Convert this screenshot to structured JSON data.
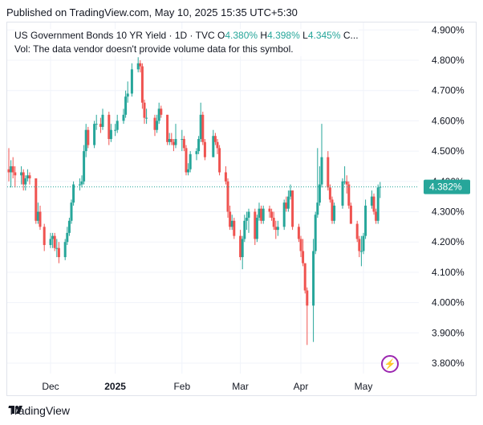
{
  "published": "Published on TradingView.com, May 10, 2025 15:35 UTC+5:30",
  "legend": {
    "title": "US Government Bonds 10 YR Yield · 1D · TVC",
    "o_label": "O",
    "o_val": "4.380%",
    "h_label": "H",
    "h_val": "4.398%",
    "l_label": "L",
    "l_val": "4.345%",
    "c_trunc": "C...",
    "vol": "Vol: The data vendor doesn't provide volume data for this symbol."
  },
  "footer": {
    "brand": "TradingView"
  },
  "icons": {
    "logo": "tradingview-logo-icon",
    "alert": "lightning-bolt-icon"
  },
  "colors": {
    "up": "#26a69a",
    "down": "#ef5350",
    "alert": "#9c27b0"
  },
  "chart_data": {
    "type": "candlestick",
    "y_unit": "%",
    "ylim": [
      3.75,
      4.92
    ],
    "y_ticks": [
      "3.800%",
      "3.900%",
      "4.000%",
      "4.100%",
      "4.200%",
      "4.300%",
      "4.400%",
      "4.500%",
      "4.600%",
      "4.700%",
      "4.800%",
      "4.900%"
    ],
    "x_ticks": [
      {
        "label": "Dec",
        "date": "2024-12-02",
        "bold": false
      },
      {
        "label": "2025",
        "date": "2025-01-02",
        "bold": true
      },
      {
        "label": "Feb",
        "date": "2025-02-03",
        "bold": false
      },
      {
        "label": "Mar",
        "date": "2025-03-03",
        "bold": false
      },
      {
        "label": "Apr",
        "date": "2025-04-01",
        "bold": false
      },
      {
        "label": "May",
        "date": "2025-05-01",
        "bold": false
      }
    ],
    "last_price": "4.382%",
    "last_value": 4.382,
    "grid": true,
    "candles": [
      {
        "d": "2024-11-12",
        "o": 4.44,
        "h": 4.51,
        "l": 4.4,
        "c": 4.43
      },
      {
        "d": "2024-11-13",
        "o": 4.43,
        "h": 4.47,
        "l": 4.38,
        "c": 4.45
      },
      {
        "d": "2024-11-14",
        "o": 4.45,
        "h": 4.48,
        "l": 4.41,
        "c": 4.43
      },
      {
        "d": "2024-11-15",
        "o": 4.43,
        "h": 4.45,
        "l": 4.38,
        "c": 4.42
      },
      {
        "d": "2024-11-18",
        "o": 4.42,
        "h": 4.45,
        "l": 4.39,
        "c": 4.43
      },
      {
        "d": "2024-11-19",
        "o": 4.43,
        "h": 4.44,
        "l": 4.37,
        "c": 4.39
      },
      {
        "d": "2024-11-20",
        "o": 4.39,
        "h": 4.42,
        "l": 4.37,
        "c": 4.41
      },
      {
        "d": "2024-11-21",
        "o": 4.41,
        "h": 4.44,
        "l": 4.4,
        "c": 4.42
      },
      {
        "d": "2024-11-22",
        "o": 4.42,
        "h": 4.43,
        "l": 4.39,
        "c": 4.41
      },
      {
        "d": "2024-11-25",
        "o": 4.41,
        "h": 4.41,
        "l": 4.26,
        "c": 4.27
      },
      {
        "d": "2024-11-26",
        "o": 4.27,
        "h": 4.33,
        "l": 4.26,
        "c": 4.3
      },
      {
        "d": "2024-11-27",
        "o": 4.3,
        "h": 4.32,
        "l": 4.24,
        "c": 4.25
      },
      {
        "d": "2024-11-29",
        "o": 4.25,
        "h": 4.26,
        "l": 4.17,
        "c": 4.19
      },
      {
        "d": "2024-12-02",
        "o": 4.19,
        "h": 4.23,
        "l": 4.18,
        "c": 4.21
      },
      {
        "d": "2024-12-03",
        "o": 4.21,
        "h": 4.23,
        "l": 4.18,
        "c": 4.22
      },
      {
        "d": "2024-12-04",
        "o": 4.22,
        "h": 4.23,
        "l": 4.17,
        "c": 4.18
      },
      {
        "d": "2024-12-05",
        "o": 4.18,
        "h": 4.21,
        "l": 4.15,
        "c": 4.18
      },
      {
        "d": "2024-12-06",
        "o": 4.18,
        "h": 4.2,
        "l": 4.13,
        "c": 4.15
      },
      {
        "d": "2024-12-09",
        "o": 4.15,
        "h": 4.21,
        "l": 4.14,
        "c": 4.2
      },
      {
        "d": "2024-12-10",
        "o": 4.2,
        "h": 4.25,
        "l": 4.19,
        "c": 4.23
      },
      {
        "d": "2024-12-11",
        "o": 4.23,
        "h": 4.28,
        "l": 4.22,
        "c": 4.27
      },
      {
        "d": "2024-12-12",
        "o": 4.27,
        "h": 4.34,
        "l": 4.26,
        "c": 4.33
      },
      {
        "d": "2024-12-13",
        "o": 4.33,
        "h": 4.4,
        "l": 4.32,
        "c": 4.39
      },
      {
        "d": "2024-12-16",
        "o": 4.39,
        "h": 4.41,
        "l": 4.37,
        "c": 4.39
      },
      {
        "d": "2024-12-17",
        "o": 4.39,
        "h": 4.42,
        "l": 4.38,
        "c": 4.4
      },
      {
        "d": "2024-12-18",
        "o": 4.4,
        "h": 4.52,
        "l": 4.39,
        "c": 4.5
      },
      {
        "d": "2024-12-19",
        "o": 4.5,
        "h": 4.59,
        "l": 4.48,
        "c": 4.57
      },
      {
        "d": "2024-12-20",
        "o": 4.57,
        "h": 4.58,
        "l": 4.51,
        "c": 4.52
      },
      {
        "d": "2024-12-23",
        "o": 4.52,
        "h": 4.6,
        "l": 4.51,
        "c": 4.59
      },
      {
        "d": "2024-12-24",
        "o": 4.59,
        "h": 4.62,
        "l": 4.57,
        "c": 4.59
      },
      {
        "d": "2024-12-26",
        "o": 4.59,
        "h": 4.61,
        "l": 4.56,
        "c": 4.58
      },
      {
        "d": "2024-12-27",
        "o": 4.58,
        "h": 4.64,
        "l": 4.57,
        "c": 4.62
      },
      {
        "d": "2024-12-30",
        "o": 4.62,
        "h": 4.63,
        "l": 4.52,
        "c": 4.54
      },
      {
        "d": "2024-12-31",
        "o": 4.54,
        "h": 4.59,
        "l": 4.53,
        "c": 4.57
      },
      {
        "d": "2025-01-02",
        "o": 4.57,
        "h": 4.59,
        "l": 4.55,
        "c": 4.57
      },
      {
        "d": "2025-01-03",
        "o": 4.57,
        "h": 4.62,
        "l": 4.56,
        "c": 4.6
      },
      {
        "d": "2025-01-06",
        "o": 4.6,
        "h": 4.64,
        "l": 4.59,
        "c": 4.62
      },
      {
        "d": "2025-01-07",
        "o": 4.62,
        "h": 4.7,
        "l": 4.61,
        "c": 4.68
      },
      {
        "d": "2025-01-08",
        "o": 4.68,
        "h": 4.73,
        "l": 4.66,
        "c": 4.69
      },
      {
        "d": "2025-01-10",
        "o": 4.69,
        "h": 4.79,
        "l": 4.68,
        "c": 4.77
      },
      {
        "d": "2025-01-13",
        "o": 4.77,
        "h": 4.81,
        "l": 4.76,
        "c": 4.79
      },
      {
        "d": "2025-01-14",
        "o": 4.79,
        "h": 4.8,
        "l": 4.76,
        "c": 4.78
      },
      {
        "d": "2025-01-15",
        "o": 4.78,
        "h": 4.79,
        "l": 4.64,
        "c": 4.66
      },
      {
        "d": "2025-01-16",
        "o": 4.66,
        "h": 4.67,
        "l": 4.59,
        "c": 4.61
      },
      {
        "d": "2025-01-17",
        "o": 4.61,
        "h": 4.64,
        "l": 4.59,
        "c": 4.61
      },
      {
        "d": "2025-01-21",
        "o": 4.61,
        "h": 4.62,
        "l": 4.55,
        "c": 4.57
      },
      {
        "d": "2025-01-22",
        "o": 4.57,
        "h": 4.62,
        "l": 4.56,
        "c": 4.6
      },
      {
        "d": "2025-01-23",
        "o": 4.6,
        "h": 4.66,
        "l": 4.59,
        "c": 4.64
      },
      {
        "d": "2025-01-24",
        "o": 4.64,
        "h": 4.65,
        "l": 4.61,
        "c": 4.62
      },
      {
        "d": "2025-01-27",
        "o": 4.62,
        "h": 4.62,
        "l": 4.52,
        "c": 4.53
      },
      {
        "d": "2025-01-28",
        "o": 4.53,
        "h": 4.56,
        "l": 4.52,
        "c": 4.54
      },
      {
        "d": "2025-01-29",
        "o": 4.54,
        "h": 4.56,
        "l": 4.52,
        "c": 4.53
      },
      {
        "d": "2025-01-30",
        "o": 4.53,
        "h": 4.54,
        "l": 4.5,
        "c": 4.52
      },
      {
        "d": "2025-01-31",
        "o": 4.52,
        "h": 4.59,
        "l": 4.51,
        "c": 4.54
      },
      {
        "d": "2025-02-03",
        "o": 4.54,
        "h": 4.57,
        "l": 4.5,
        "c": 4.54
      },
      {
        "d": "2025-02-04",
        "o": 4.54,
        "h": 4.55,
        "l": 4.5,
        "c": 4.51
      },
      {
        "d": "2025-02-05",
        "o": 4.51,
        "h": 4.52,
        "l": 4.42,
        "c": 4.43
      },
      {
        "d": "2025-02-06",
        "o": 4.43,
        "h": 4.46,
        "l": 4.42,
        "c": 4.44
      },
      {
        "d": "2025-02-07",
        "o": 4.44,
        "h": 4.5,
        "l": 4.43,
        "c": 4.49
      },
      {
        "d": "2025-02-10",
        "o": 4.49,
        "h": 4.51,
        "l": 4.47,
        "c": 4.5
      },
      {
        "d": "2025-02-11",
        "o": 4.5,
        "h": 4.55,
        "l": 4.49,
        "c": 4.54
      },
      {
        "d": "2025-02-12",
        "o": 4.54,
        "h": 4.66,
        "l": 4.53,
        "c": 4.62
      },
      {
        "d": "2025-02-13",
        "o": 4.62,
        "h": 4.63,
        "l": 4.52,
        "c": 4.53
      },
      {
        "d": "2025-02-14",
        "o": 4.53,
        "h": 4.54,
        "l": 4.47,
        "c": 4.48
      },
      {
        "d": "2025-02-18",
        "o": 4.48,
        "h": 4.57,
        "l": 4.48,
        "c": 4.55
      },
      {
        "d": "2025-02-19",
        "o": 4.55,
        "h": 4.56,
        "l": 4.52,
        "c": 4.53
      },
      {
        "d": "2025-02-20",
        "o": 4.53,
        "h": 4.54,
        "l": 4.49,
        "c": 4.51
      },
      {
        "d": "2025-02-21",
        "o": 4.51,
        "h": 4.52,
        "l": 4.42,
        "c": 4.43
      },
      {
        "d": "2025-02-24",
        "o": 4.43,
        "h": 4.45,
        "l": 4.39,
        "c": 4.4
      },
      {
        "d": "2025-02-25",
        "o": 4.4,
        "h": 4.41,
        "l": 4.28,
        "c": 4.3
      },
      {
        "d": "2025-02-26",
        "o": 4.3,
        "h": 4.32,
        "l": 4.24,
        "c": 4.25
      },
      {
        "d": "2025-02-27",
        "o": 4.25,
        "h": 4.29,
        "l": 4.24,
        "c": 4.27
      },
      {
        "d": "2025-02-28",
        "o": 4.27,
        "h": 4.28,
        "l": 4.21,
        "c": 4.22
      },
      {
        "d": "2025-03-03",
        "o": 4.22,
        "h": 4.24,
        "l": 4.14,
        "c": 4.15
      },
      {
        "d": "2025-03-04",
        "o": 4.15,
        "h": 4.22,
        "l": 4.11,
        "c": 4.21
      },
      {
        "d": "2025-03-05",
        "o": 4.21,
        "h": 4.29,
        "l": 4.2,
        "c": 4.27
      },
      {
        "d": "2025-03-06",
        "o": 4.27,
        "h": 4.3,
        "l": 4.24,
        "c": 4.28
      },
      {
        "d": "2025-03-07",
        "o": 4.28,
        "h": 4.31,
        "l": 4.23,
        "c": 4.3
      },
      {
        "d": "2025-03-10",
        "o": 4.3,
        "h": 4.31,
        "l": 4.19,
        "c": 4.21
      },
      {
        "d": "2025-03-11",
        "o": 4.21,
        "h": 4.29,
        "l": 4.2,
        "c": 4.28
      },
      {
        "d": "2025-03-12",
        "o": 4.28,
        "h": 4.33,
        "l": 4.27,
        "c": 4.31
      },
      {
        "d": "2025-03-13",
        "o": 4.31,
        "h": 4.32,
        "l": 4.26,
        "c": 4.27
      },
      {
        "d": "2025-03-14",
        "o": 4.27,
        "h": 4.32,
        "l": 4.26,
        "c": 4.31
      },
      {
        "d": "2025-03-17",
        "o": 4.31,
        "h": 4.32,
        "l": 4.28,
        "c": 4.3
      },
      {
        "d": "2025-03-18",
        "o": 4.3,
        "h": 4.31,
        "l": 4.27,
        "c": 4.28
      },
      {
        "d": "2025-03-19",
        "o": 4.28,
        "h": 4.3,
        "l": 4.24,
        "c": 4.25
      },
      {
        "d": "2025-03-20",
        "o": 4.25,
        "h": 4.27,
        "l": 4.21,
        "c": 4.24
      },
      {
        "d": "2025-03-21",
        "o": 4.24,
        "h": 4.27,
        "l": 4.22,
        "c": 4.25
      },
      {
        "d": "2025-03-24",
        "o": 4.25,
        "h": 4.34,
        "l": 4.24,
        "c": 4.33
      },
      {
        "d": "2025-03-25",
        "o": 4.33,
        "h": 4.35,
        "l": 4.3,
        "c": 4.31
      },
      {
        "d": "2025-03-26",
        "o": 4.31,
        "h": 4.37,
        "l": 4.3,
        "c": 4.35
      },
      {
        "d": "2025-03-27",
        "o": 4.35,
        "h": 4.39,
        "l": 4.34,
        "c": 4.37
      },
      {
        "d": "2025-03-28",
        "o": 4.37,
        "h": 4.37,
        "l": 4.24,
        "c": 4.25
      },
      {
        "d": "2025-03-31",
        "o": 4.25,
        "h": 4.26,
        "l": 4.2,
        "c": 4.21
      },
      {
        "d": "2025-04-01",
        "o": 4.21,
        "h": 4.22,
        "l": 4.15,
        "c": 4.17
      },
      {
        "d": "2025-04-02",
        "o": 4.17,
        "h": 4.21,
        "l": 4.12,
        "c": 4.13
      },
      {
        "d": "2025-04-03",
        "o": 4.13,
        "h": 4.13,
        "l": 4.03,
        "c": 4.04
      },
      {
        "d": "2025-04-04",
        "o": 4.04,
        "h": 4.05,
        "l": 3.86,
        "c": 3.99
      },
      {
        "d": "2025-04-07",
        "o": 3.99,
        "h": 4.21,
        "l": 3.87,
        "c": 4.17
      },
      {
        "d": "2025-04-08",
        "o": 4.17,
        "h": 4.3,
        "l": 4.16,
        "c": 4.29
      },
      {
        "d": "2025-04-09",
        "o": 4.29,
        "h": 4.51,
        "l": 4.28,
        "c": 4.33
      },
      {
        "d": "2025-04-10",
        "o": 4.33,
        "h": 4.45,
        "l": 4.32,
        "c": 4.39
      },
      {
        "d": "2025-04-11",
        "o": 4.39,
        "h": 4.59,
        "l": 4.38,
        "c": 4.48
      },
      {
        "d": "2025-04-14",
        "o": 4.48,
        "h": 4.5,
        "l": 4.37,
        "c": 4.38
      },
      {
        "d": "2025-04-15",
        "o": 4.38,
        "h": 4.39,
        "l": 4.33,
        "c": 4.34
      },
      {
        "d": "2025-04-16",
        "o": 4.34,
        "h": 4.35,
        "l": 4.26,
        "c": 4.27
      },
      {
        "d": "2025-04-17",
        "o": 4.27,
        "h": 4.33,
        "l": 4.26,
        "c": 4.32
      },
      {
        "d": "2025-04-21",
        "o": 4.32,
        "h": 4.41,
        "l": 4.31,
        "c": 4.4
      },
      {
        "d": "2025-04-22",
        "o": 4.4,
        "h": 4.45,
        "l": 4.39,
        "c": 4.4
      },
      {
        "d": "2025-04-23",
        "o": 4.4,
        "h": 4.42,
        "l": 4.36,
        "c": 4.39
      },
      {
        "d": "2025-04-24",
        "o": 4.39,
        "h": 4.4,
        "l": 4.31,
        "c": 4.32
      },
      {
        "d": "2025-04-25",
        "o": 4.32,
        "h": 4.33,
        "l": 4.26,
        "c": 4.26
      },
      {
        "d": "2025-04-28",
        "o": 4.26,
        "h": 4.27,
        "l": 4.2,
        "c": 4.21
      },
      {
        "d": "2025-04-29",
        "o": 4.21,
        "h": 4.22,
        "l": 4.15,
        "c": 4.17
      },
      {
        "d": "2025-04-30",
        "o": 4.17,
        "h": 4.22,
        "l": 4.12,
        "c": 4.17
      },
      {
        "d": "2025-05-01",
        "o": 4.17,
        "h": 4.23,
        "l": 4.16,
        "c": 4.22
      },
      {
        "d": "2025-05-02",
        "o": 4.22,
        "h": 4.34,
        "l": 4.21,
        "c": 4.32
      },
      {
        "d": "2025-05-05",
        "o": 4.32,
        "h": 4.37,
        "l": 4.31,
        "c": 4.35
      },
      {
        "d": "2025-05-06",
        "o": 4.35,
        "h": 4.36,
        "l": 4.29,
        "c": 4.3
      },
      {
        "d": "2025-05-07",
        "o": 4.3,
        "h": 4.31,
        "l": 4.26,
        "c": 4.27
      },
      {
        "d": "2025-05-08",
        "o": 4.27,
        "h": 4.39,
        "l": 4.26,
        "c": 4.38
      },
      {
        "d": "2025-05-09",
        "o": 4.38,
        "h": 4.398,
        "l": 4.345,
        "c": 4.382
      }
    ]
  }
}
